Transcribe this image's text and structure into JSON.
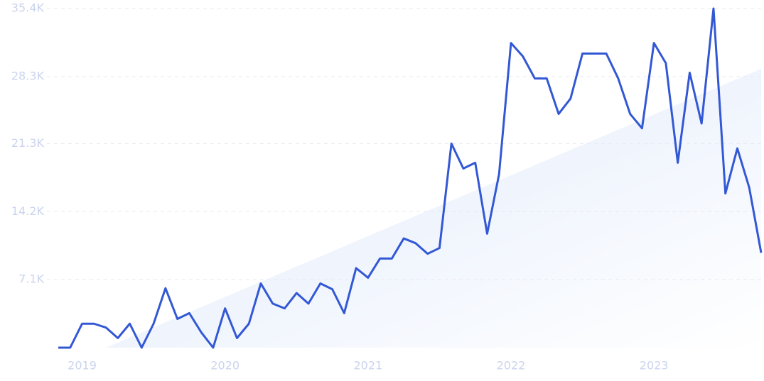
{
  "chart_data": {
    "type": "line",
    "categories": [
      null,
      null,
      "2019",
      null,
      null,
      null,
      null,
      null,
      null,
      null,
      null,
      null,
      null,
      null,
      "2020",
      null,
      null,
      null,
      null,
      null,
      null,
      null,
      null,
      null,
      null,
      null,
      "2021",
      null,
      null,
      null,
      null,
      null,
      null,
      null,
      null,
      null,
      null,
      null,
      "2022",
      null,
      null,
      null,
      null,
      null,
      null,
      null,
      null,
      null,
      null,
      null,
      "2023",
      null,
      null,
      null,
      null,
      null,
      null,
      null,
      null,
      null
    ],
    "series": [
      {
        "color": "#3358d4",
        "values": [
          0,
          0,
          2500,
          2500,
          2100,
          1000,
          2500,
          0,
          2500,
          6200,
          3000,
          3600,
          1600,
          0,
          4100,
          1000,
          2500,
          6700,
          4600,
          4100,
          5700,
          4600,
          6700,
          6100,
          3600,
          8300,
          7300,
          9300,
          9300,
          11400,
          10900,
          9800,
          10400,
          21300,
          18700,
          19300,
          11900,
          18100,
          31800,
          30400,
          28100,
          28100,
          24400,
          26000,
          30700,
          30700,
          30700,
          28100,
          24400,
          22900,
          31800,
          29700,
          19300,
          28700,
          23400,
          35400,
          16100,
          20800,
          16700,
          9900
        ]
      }
    ],
    "trend": {
      "color": "#e3ecfb",
      "from_index": 4,
      "to_index": 59,
      "values": [
        0,
        29100
      ]
    },
    "ylim": [
      0,
      35400
    ],
    "yticks": [
      {
        "value": 7100,
        "label": "7.1K"
      },
      {
        "value": 14200,
        "label": "14.2K"
      },
      {
        "value": 21300,
        "label": "21.3K"
      },
      {
        "value": 28300,
        "label": "28.3K"
      },
      {
        "value": 35400,
        "label": "35.4K"
      }
    ],
    "grid": true
  }
}
